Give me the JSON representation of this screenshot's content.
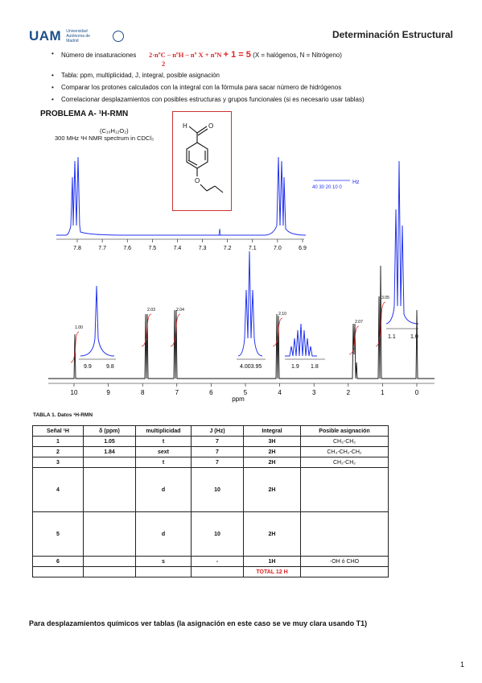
{
  "header": {
    "logo_text": "UAM",
    "logo_subtext": "Universidad Autónoma de Madrid",
    "title": "Determinación Estructural"
  },
  "bullets": {
    "unsat_label": "Número de insaturaciones",
    "unsat_formula": "2·nºC – nºH – nº X + nºN",
    "unsat_divisor": "2",
    "unsat_result": "+ 1 = 5",
    "unsat_note": "(X = halógenos, N = Nitrógeno)",
    "table_hint": "Tabla: ppm, multiplicidad, J, integral, posible asignación",
    "compare_hint": "Comparar los protones calculados con la integral con la fórmula para sacar número de hidrógenos",
    "correlate_hint": "Correlacionar desplazamientos con posibles estructuras y grupos funcionales (si es necesario usar tablas)"
  },
  "problem_title": "PROBLEMA A- ¹H-RMN",
  "spectrum": {
    "formula": "(C₁₀H₁₂O₂)",
    "caption": "300 MHz ¹H NMR spectrum in CDCl₃",
    "xlabel": "ppm",
    "main_ticks": [
      "10",
      "9",
      "8",
      "7",
      "6",
      "5",
      "4",
      "3",
      "2",
      "1",
      "0"
    ],
    "inset_wide_ticks": [
      "7.8",
      "7.7",
      "7.6",
      "7.5",
      "7.4",
      "7.3",
      "7.2",
      "7.1",
      "7.0",
      "6.9"
    ],
    "hz_label": "Hz",
    "hz_ticks": "40 30 20 10 0",
    "integrals": [
      "1.00",
      "2.03",
      "2.04",
      "2.10",
      "2.07",
      "3.05"
    ],
    "inset_cho_ticks": [
      "9.9",
      "9.8"
    ],
    "inset_och2_ticks": "4.003.95",
    "inset_ch2_ticks": [
      "1.9",
      "1.8"
    ],
    "inset_ch3_ticks": [
      "1.1",
      "1.0"
    ]
  },
  "table": {
    "caption": "TABLA 1. Datos ¹H-RMN",
    "headers": [
      "Señal ¹H",
      "δ (ppm)",
      "multiplicidad",
      "J (Hz)",
      "Integral",
      "Posible asignación"
    ],
    "rows": [
      [
        "1",
        "1.05",
        "t",
        "7",
        "3H",
        "CH₃-CH₂"
      ],
      [
        "2",
        "1.84",
        "sext",
        "7",
        "2H",
        "CH₃-CH₂-CH₂"
      ],
      [
        "3",
        "",
        "t",
        "7",
        "2H",
        "CH₂-CH₂"
      ],
      [
        "4",
        "",
        "d",
        "10",
        "2H",
        ""
      ],
      [
        "5",
        "",
        "d",
        "10",
        "2H",
        ""
      ],
      [
        "6",
        "",
        "s",
        "-",
        "1H",
        "-OH ó CHO"
      ]
    ],
    "total": "TOTAL 12 H"
  },
  "footer_note": "Para desplazamientos químicos ver tablas (la asignación en este caso se ve muy clara usando T1)",
  "page_number": "1",
  "colors": {
    "accent_red": "#d22222",
    "spectrum_blue": "#2233ee",
    "logo_blue": "#1d4f8a"
  }
}
